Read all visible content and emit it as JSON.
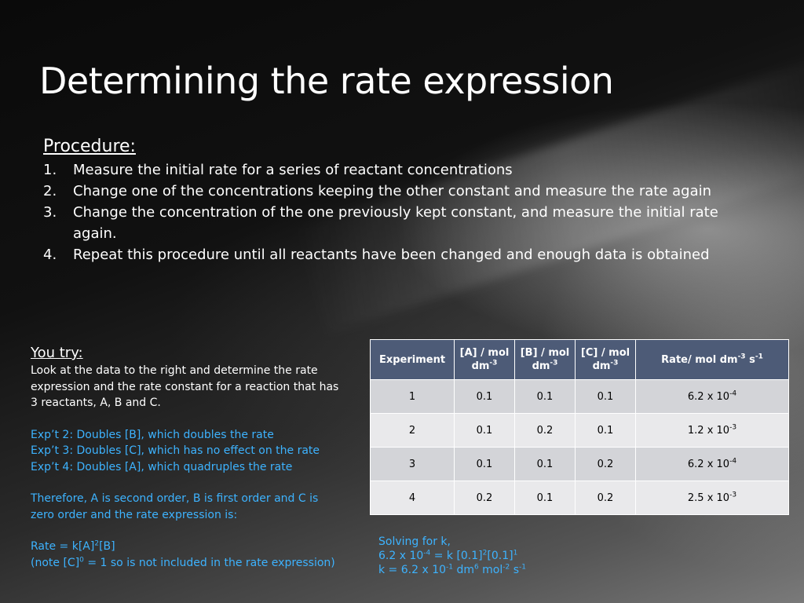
{
  "slide": {
    "title": "Determining the rate expression",
    "procedure": {
      "heading": "Procedure:",
      "steps": [
        {
          "num": "1.",
          "text": "Measure the initial rate for a series of reactant concentrations"
        },
        {
          "num": "2.",
          "text": "Change one of the concentrations keeping the other constant and measure the rate again"
        },
        {
          "num": "3.",
          "text": "Change the concentration of the one previously kept constant, and measure the initial rate again."
        },
        {
          "num": "4.",
          "text": "Repeat this procedure until all reactants have been changed and enough data is obtained"
        }
      ]
    },
    "you_try": {
      "heading": "You try:",
      "intro": "Look at the data to the right and determine the rate expression and the rate constant for a reaction that has 3 reactants, A, B and C.",
      "exp2": "Exp’t 2: Doubles [B], which doubles the rate",
      "exp3": "Exp’t 3: Doubles [C], which has no effect on the rate",
      "exp4": "Exp’t 4: Doubles [A], which quadruples the rate",
      "conclusion": "Therefore, A is second order, B is first order and C is zero order and the rate expression is:",
      "rate_prefix": "Rate = k[A]",
      "rate_sup": "2",
      "rate_suffix": "[B]",
      "note_prefix": "(note [C]",
      "note_sup": "0",
      "note_suffix": " = 1 so is not included in the rate expression)"
    },
    "table": {
      "headers": {
        "experiment": "Experiment",
        "a": "[A] / mol dm",
        "b": "[B] / mol dm",
        "c": "[C] / mol dm",
        "conc_sup": "-3",
        "rate": "Rate/ mol dm",
        "rate_sup1": "-3",
        "rate_mid": " s",
        "rate_sup2": "-1"
      },
      "rows": [
        {
          "exp": "1",
          "a": "0.1",
          "b": "0.1",
          "c": "0.1",
          "rate": "6.2 x 10",
          "rate_exp": "-4"
        },
        {
          "exp": "2",
          "a": "0.1",
          "b": "0.2",
          "c": "0.1",
          "rate": "1.2 x 10",
          "rate_exp": "-3"
        },
        {
          "exp": "3",
          "a": "0.1",
          "b": "0.1",
          "c": "0.2",
          "rate": "6.2 x 10",
          "rate_exp": "-4"
        },
        {
          "exp": "4",
          "a": "0.2",
          "b": "0.1",
          "c": "0.2",
          "rate": "2.5 x 10",
          "rate_exp": "-3"
        }
      ]
    },
    "solving": {
      "line1": "Solving for k,",
      "l2_a": "6.2 x 10",
      "l2_sup1": "-4",
      "l2_b": " = k [0.1]",
      "l2_sup2": "2",
      "l2_c": "[0.1]",
      "l2_sup3": "1",
      "l3_a": "k = 6.2 x 10",
      "l3_sup1": "-1",
      "l3_b": " dm",
      "l3_sup2": "6",
      "l3_c": " mol",
      "l3_sup3": "-2",
      "l3_d": " s",
      "l3_sup4": "-1"
    }
  }
}
